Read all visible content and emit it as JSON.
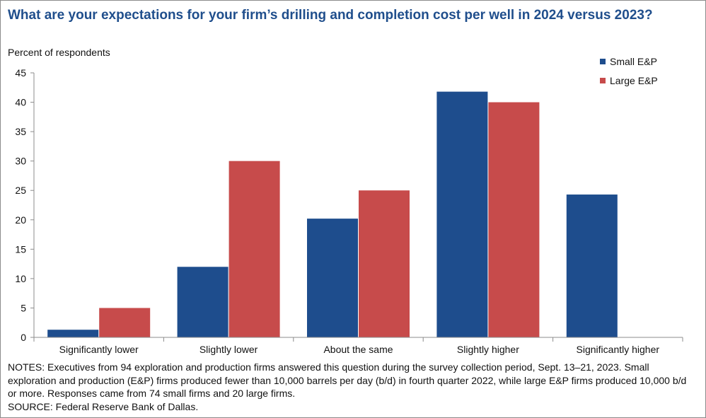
{
  "title": "What are your expectations for your firm’s drilling and completion cost per well in 2024 versus 2023?",
  "colors": {
    "small": "#1e4d8d",
    "large": "#c74b4b",
    "title": "#1f4e8c"
  },
  "chart_data": {
    "type": "bar",
    "title": "What are your expectations for your firm’s drilling and completion cost per well in 2024 versus 2023?",
    "ylabel": "Percent of respondents",
    "xlabel": "",
    "ylim": [
      0,
      45
    ],
    "yticks": [
      0,
      5,
      10,
      15,
      20,
      25,
      30,
      35,
      40,
      45
    ],
    "grid": false,
    "legend_position": "top-right",
    "categories": [
      "Significantly lower",
      "Slightly lower",
      "About the same",
      "Slightly higher",
      "Significantly higher"
    ],
    "series": [
      {
        "name": "Small E&P",
        "values": [
          1.3,
          12.0,
          20.2,
          41.8,
          24.3
        ]
      },
      {
        "name": "Large E&P",
        "values": [
          5.0,
          30.0,
          25.0,
          40.0,
          0
        ]
      }
    ]
  },
  "notes": {
    "notes_text": "NOTES: Executives from 94 exploration and production firms answered this question during the survey collection period, Sept. 13–21, 2023. Small exploration and production (E&P) firms produced fewer than 10,000 barrels per day (b/d) in fourth quarter 2022, while large E&P firms produced 10,000 b/d or more. Responses came from 74 small firms and 20 large firms.",
    "source_text": "SOURCE: Federal Reserve Bank of Dallas."
  }
}
